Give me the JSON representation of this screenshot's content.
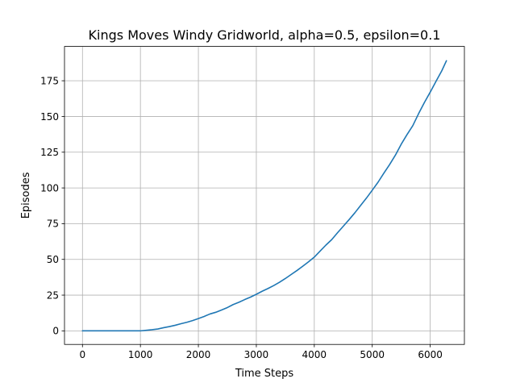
{
  "chart_data": {
    "type": "line",
    "title": "Kings Moves Windy Gridworld, alpha=0.5, epsilon=0.1",
    "xlabel": "Time Steps",
    "ylabel": "Episodes",
    "xlim": [
      -310,
      6590
    ],
    "ylim": [
      -9.5,
      199
    ],
    "xticks": [
      0,
      1000,
      2000,
      3000,
      4000,
      5000,
      6000
    ],
    "yticks": [
      0,
      25,
      50,
      75,
      100,
      125,
      150,
      175
    ],
    "grid": true,
    "line_color": "#1f77b4",
    "series": [
      {
        "x": [
          0,
          200,
          400,
          600,
          800,
          1000,
          1100,
          1200,
          1300,
          1400,
          1500,
          1600,
          1700,
          1800,
          1900,
          2000,
          2100,
          2200,
          2300,
          2400,
          2500,
          2600,
          2700,
          2800,
          2900,
          3000,
          3100,
          3200,
          3300,
          3400,
          3500,
          3600,
          3700,
          3800,
          3900,
          4000,
          4100,
          4200,
          4300,
          4400,
          4500,
          4600,
          4700,
          4800,
          4900,
          5000,
          5100,
          5200,
          5300,
          5400,
          5500,
          5600,
          5700,
          5800,
          5900,
          6000,
          6100,
          6200,
          6280
        ],
        "values": [
          0,
          0,
          0,
          0,
          0,
          0,
          0.4,
          0.8,
          1.3,
          2.2,
          3.0,
          3.9,
          5.0,
          6.0,
          7.2,
          8.6,
          10.1,
          11.8,
          13.0,
          14.6,
          16.3,
          18.4,
          20.0,
          21.9,
          23.6,
          25.6,
          27.7,
          29.6,
          31.7,
          34.0,
          36.6,
          39.4,
          42.2,
          45.2,
          48.3,
          51.6,
          55.8,
          60.0,
          63.8,
          68.6,
          73.2,
          77.8,
          82.6,
          87.8,
          92.9,
          98.4,
          104.0,
          110.3,
          116.4,
          123.0,
          130.6,
          137.3,
          143.6,
          152.0,
          159.8,
          167.0,
          174.6,
          182.0,
          189.0
        ]
      }
    ]
  }
}
